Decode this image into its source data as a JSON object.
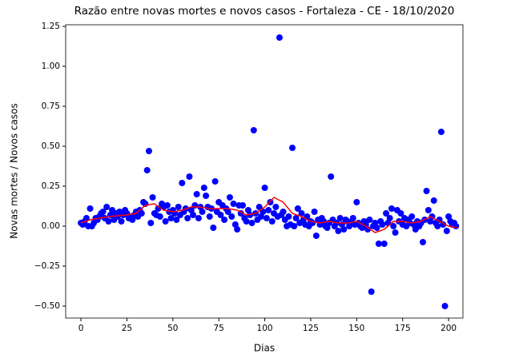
{
  "chart_data": {
    "type": "scatter",
    "title": "Razão entre novas mortes e novos casos - Fortaleza - CE - 18/10/2020",
    "x_label": "Dias",
    "y_label": "Novas mortes / Novos casos",
    "xlim": [
      -8.3,
      207.8
    ],
    "ylim": [
      -0.575,
      1.26
    ],
    "xticks": [
      0,
      25,
      50,
      75,
      100,
      125,
      150,
      175,
      200
    ],
    "yticks": [
      {
        "value": -0.5,
        "label": "−0.50"
      },
      {
        "value": -0.25,
        "label": "−0.25"
      },
      {
        "value": 0,
        "label": "0.00"
      },
      {
        "value": 0.25,
        "label": "0.25"
      },
      {
        "value": 0.5,
        "label": "0.50"
      },
      {
        "value": 0.75,
        "label": "0.75"
      },
      {
        "value": 1,
        "label": "1.00"
      },
      {
        "value": 1.25,
        "label": "1.25"
      }
    ],
    "series": [
      {
        "type": "scatter",
        "color": "#0000ff",
        "x": [
          0,
          1,
          2,
          3,
          4,
          5,
          6,
          7,
          8,
          9,
          10,
          11,
          12,
          13,
          14,
          15,
          16,
          17,
          18,
          19,
          20,
          21,
          22,
          23,
          24,
          25,
          26,
          27,
          28,
          29,
          30,
          31,
          32,
          33,
          34,
          35,
          36,
          37,
          38,
          39,
          40,
          41,
          42,
          43,
          44,
          45,
          46,
          47,
          48,
          49,
          50,
          51,
          52,
          53,
          54,
          55,
          56,
          57,
          58,
          59,
          60,
          61,
          62,
          63,
          64,
          65,
          66,
          67,
          68,
          69,
          70,
          71,
          72,
          73,
          74,
          75,
          76,
          77,
          78,
          79,
          80,
          81,
          82,
          83,
          84,
          85,
          86,
          87,
          88,
          89,
          90,
          91,
          92,
          93,
          94,
          95,
          96,
          97,
          98,
          99,
          100,
          101,
          102,
          103,
          104,
          105,
          106,
          107,
          108,
          109,
          110,
          111,
          112,
          113,
          114,
          115,
          116,
          117,
          118,
          119,
          120,
          121,
          122,
          123,
          124,
          125,
          126,
          127,
          128,
          129,
          130,
          131,
          132,
          133,
          134,
          135,
          136,
          137,
          138,
          139,
          140,
          141,
          142,
          143,
          144,
          145,
          146,
          147,
          148,
          149,
          150,
          151,
          152,
          153,
          154,
          155,
          156,
          157,
          158,
          159,
          160,
          161,
          162,
          163,
          164,
          165,
          166,
          167,
          168,
          169,
          170,
          171,
          172,
          173,
          174,
          175,
          176,
          177,
          178,
          179,
          180,
          181,
          182,
          183,
          184,
          185,
          186,
          187,
          188,
          189,
          190,
          191,
          192,
          193,
          194,
          195,
          196,
          197,
          198,
          199,
          200,
          201,
          202,
          203,
          204
        ],
        "values": [
          0.02,
          0.01,
          0.03,
          0.05,
          0.0,
          0.11,
          0.0,
          0.02,
          0.05,
          0.04,
          0.06,
          0.08,
          0.09,
          0.05,
          0.12,
          0.03,
          0.07,
          0.1,
          0.04,
          0.08,
          0.06,
          0.09,
          0.03,
          0.07,
          0.1,
          0.08,
          0.05,
          0.06,
          0.04,
          0.07,
          0.09,
          0.06,
          0.1,
          0.08,
          0.15,
          0.14,
          0.35,
          0.47,
          0.02,
          0.18,
          0.08,
          0.07,
          0.11,
          0.06,
          0.14,
          0.12,
          0.03,
          0.13,
          0.09,
          0.05,
          0.1,
          0.08,
          0.04,
          0.12,
          0.07,
          0.27,
          0.09,
          0.11,
          0.05,
          0.31,
          0.1,
          0.07,
          0.13,
          0.2,
          0.05,
          0.12,
          0.09,
          0.24,
          0.19,
          0.12,
          0.06,
          0.11,
          -0.01,
          0.28,
          0.09,
          0.15,
          0.07,
          0.13,
          0.04,
          0.11,
          0.09,
          0.18,
          0.06,
          0.14,
          0.01,
          -0.02,
          0.13,
          0.08,
          0.13,
          0.05,
          0.03,
          0.1,
          0.07,
          0.02,
          0.6,
          0.08,
          0.04,
          0.12,
          0.06,
          0.09,
          0.24,
          0.05,
          0.1,
          0.15,
          0.03,
          0.08,
          0.12,
          0.06,
          1.18,
          0.07,
          0.09,
          0.04,
          0.0,
          0.06,
          0.01,
          0.49,
          0.0,
          0.05,
          0.11,
          0.02,
          0.08,
          0.04,
          0.01,
          0.06,
          0.0,
          0.03,
          0.02,
          0.09,
          -0.06,
          0.04,
          0.01,
          0.05,
          0.03,
          0.0,
          -0.01,
          0.02,
          0.31,
          0.04,
          0.0,
          0.02,
          -0.03,
          0.05,
          0.01,
          -0.02,
          0.04,
          0.03,
          0.0,
          0.02,
          0.05,
          0.01,
          0.15,
          0.02,
          0.0,
          -0.01,
          0.03,
          0.01,
          -0.02,
          0.04,
          -0.41,
          0.0,
          0.02,
          -0.01,
          -0.11,
          0.03,
          0.01,
          -0.11,
          0.08,
          0.02,
          0.05,
          0.11,
          0.0,
          -0.04,
          0.1,
          0.03,
          0.08,
          0.01,
          0.05,
          0.0,
          0.04,
          0.02,
          0.06,
          0.01,
          -0.02,
          0.03,
          0.0,
          0.02,
          -0.1,
          0.04,
          0.22,
          0.1,
          0.03,
          0.06,
          0.16,
          0.02,
          0.0,
          0.04,
          0.59,
          0.01,
          -0.5,
          -0.03,
          0.06,
          0.03,
          0.01,
          0.02,
          0.0
        ]
      },
      {
        "type": "line",
        "color": "#ff0000",
        "x": [
          0,
          5,
          10,
          15,
          20,
          25,
          30,
          35,
          40,
          45,
          50,
          55,
          60,
          65,
          70,
          75,
          80,
          85,
          90,
          95,
          100,
          105,
          110,
          115,
          120,
          125,
          130,
          135,
          140,
          145,
          150,
          155,
          160,
          165,
          170,
          175,
          180,
          185,
          190,
          195,
          200,
          205
        ],
        "values": [
          0.02,
          0.04,
          0.05,
          0.06,
          0.065,
          0.07,
          0.08,
          0.13,
          0.14,
          0.1,
          0.09,
          0.1,
          0.12,
          0.12,
          0.11,
          0.11,
          0.11,
          0.1,
          0.07,
          0.08,
          0.12,
          0.18,
          0.15,
          0.08,
          0.06,
          0.03,
          0.02,
          0.03,
          0.02,
          0.02,
          0.03,
          0.0,
          -0.04,
          -0.02,
          0.03,
          0.03,
          0.02,
          0.03,
          0.06,
          0.03,
          0.0,
          -0.01
        ]
      }
    ]
  }
}
